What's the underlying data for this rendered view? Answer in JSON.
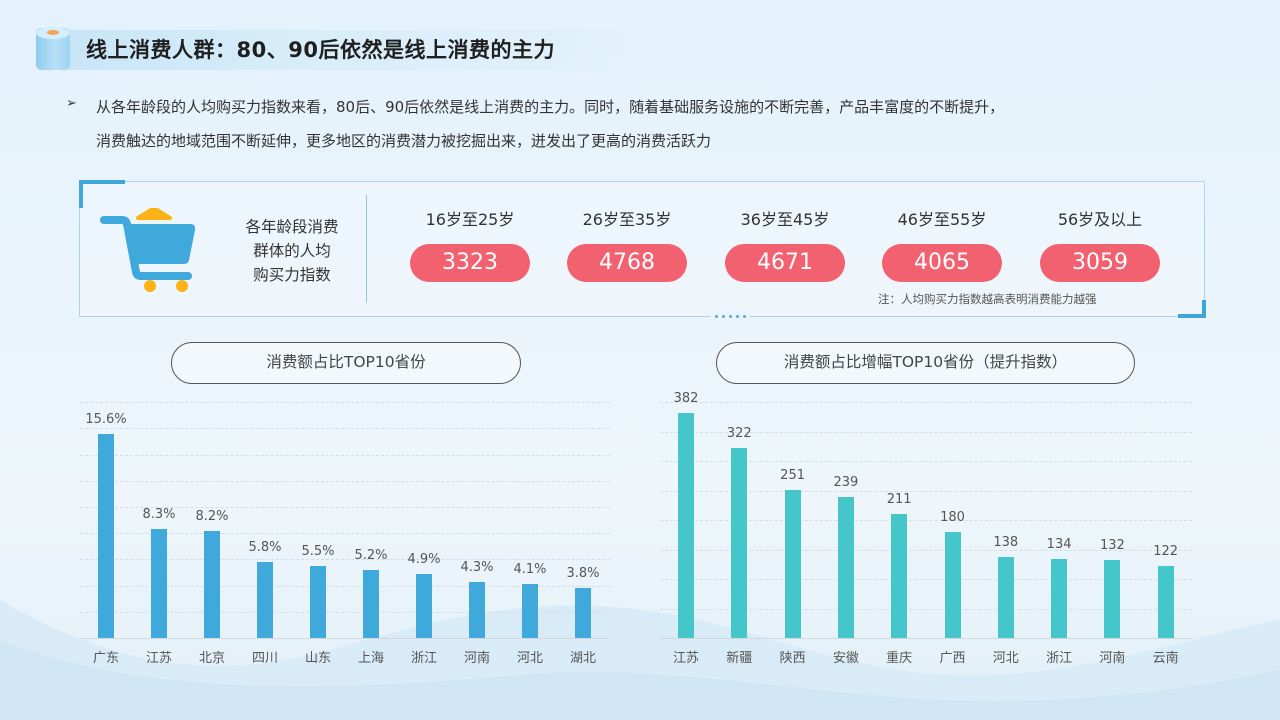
{
  "header": {
    "title": "线上消费人群：80、90后依然是线上消费的主力"
  },
  "summary": {
    "bullet_icon": "arrow-right-icon",
    "line1": "从各年龄段的人均购买力指数来看，80后、90后依然是线上消费的主力。同时，随着基础服务设施的不断完善，产品丰富度的不断提升，",
    "line2": "消费触达的地域范围不断延伸，更多地区的消费潜力被挖掘出来，迸发出了更高的消费活跃力"
  },
  "panel": {
    "icon": "shopping-cart-icon",
    "label_lines": [
      "各年龄段消费",
      "群体的人均",
      "购买力指数"
    ],
    "age_groups": [
      {
        "label": "16岁至25岁",
        "value": "3323"
      },
      {
        "label": "26岁至35岁",
        "value": "4768"
      },
      {
        "label": "36岁至45岁",
        "value": "4671"
      },
      {
        "label": "46岁至55岁",
        "value": "4065"
      },
      {
        "label": "56岁及以上",
        "value": "3059"
      }
    ],
    "note": "注：人均购买力指数越高表明消费能力越强",
    "pill_color": "#f2616f"
  },
  "colors": {
    "left_bar": "#3fa9db",
    "right_bar": "#45c6cb",
    "accent": "#3ea6d8"
  },
  "chart_data": [
    {
      "type": "bar",
      "title": "消费额占比TOP10省份",
      "categories": [
        "广东",
        "江苏",
        "北京",
        "四川",
        "山东",
        "上海",
        "浙江",
        "河南",
        "河北",
        "湖北"
      ],
      "values": [
        15.6,
        8.3,
        8.2,
        5.8,
        5.5,
        5.2,
        4.9,
        4.3,
        4.1,
        3.8
      ],
      "value_labels": [
        "15.6%",
        "8.3%",
        "8.2%",
        "5.8%",
        "5.5%",
        "5.2%",
        "4.9%",
        "4.3%",
        "4.1%",
        "3.8%"
      ],
      "xlabel": "",
      "ylabel": "",
      "ylim": [
        0,
        16.5
      ],
      "grid": true,
      "legend": "none"
    },
    {
      "type": "bar",
      "title": "消费额占比增幅TOP10省份（提升指数）",
      "categories": [
        "江苏",
        "新疆",
        "陕西",
        "安徽",
        "重庆",
        "广西",
        "河北",
        "浙江",
        "河南",
        "云南"
      ],
      "values": [
        382,
        322,
        251,
        239,
        211,
        180,
        138,
        134,
        132,
        122
      ],
      "value_labels": [
        "382",
        "322",
        "251",
        "239",
        "211",
        "180",
        "138",
        "134",
        "132",
        "122"
      ],
      "xlabel": "",
      "ylabel": "",
      "ylim": [
        0,
        400
      ],
      "grid": true,
      "legend": "none"
    }
  ]
}
